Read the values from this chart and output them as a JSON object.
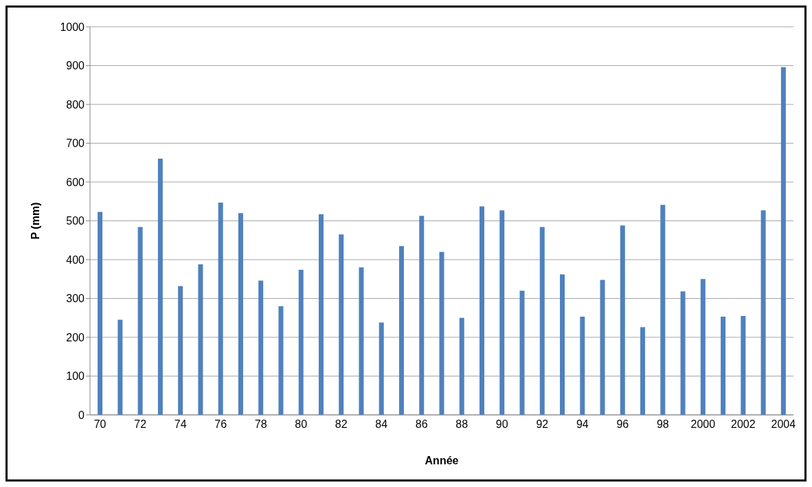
{
  "chart_data": {
    "type": "bar",
    "xlabel": "Année",
    "ylabel": "P (mm)",
    "categories": [
      "70",
      null,
      "72",
      null,
      "74",
      null,
      "76",
      null,
      "78",
      null,
      "80",
      null,
      "82",
      null,
      "84",
      null,
      "86",
      null,
      "88",
      null,
      "90",
      null,
      "92",
      null,
      "94",
      null,
      "96",
      null,
      "98",
      null,
      "2000",
      null,
      "2002",
      null,
      "2004"
    ],
    "values": [
      523,
      245,
      484,
      660,
      332,
      388,
      547,
      520,
      346,
      280,
      374,
      517,
      465,
      380,
      238,
      435,
      513,
      420,
      250,
      537,
      527,
      320,
      484,
      362,
      253,
      348,
      488,
      226,
      541,
      318,
      350,
      253,
      255,
      527,
      896
    ],
    "color": "#4f81bd",
    "ylim": [
      0,
      1000
    ],
    "yticks": [
      0,
      100,
      200,
      300,
      400,
      500,
      600,
      700,
      800,
      900,
      1000
    ],
    "grid": "y"
  }
}
